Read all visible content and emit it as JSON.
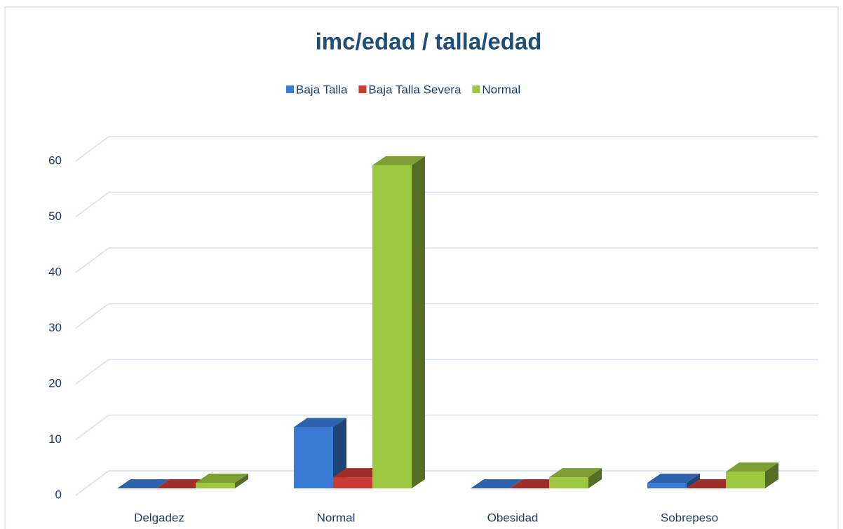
{
  "chart_data": {
    "type": "bar3d",
    "title": "imc/edad / talla/edad",
    "categories": [
      "Delgadez",
      "Normal",
      "Obesidad",
      "Sobrepeso"
    ],
    "series": [
      {
        "name": "Baja Talla",
        "color": "#3a7bd5",
        "values": [
          0,
          11,
          0,
          1
        ]
      },
      {
        "name": "Baja Talla Severa",
        "color": "#c83a32",
        "values": [
          0,
          2,
          0,
          0
        ]
      },
      {
        "name": "Normal",
        "color": "#9cc741",
        "values": [
          1,
          58,
          2,
          3
        ]
      }
    ],
    "ylim": [
      0,
      60
    ],
    "yticks": [
      0,
      10,
      20,
      30,
      40,
      50,
      60
    ],
    "grid": true,
    "legend": "top"
  }
}
